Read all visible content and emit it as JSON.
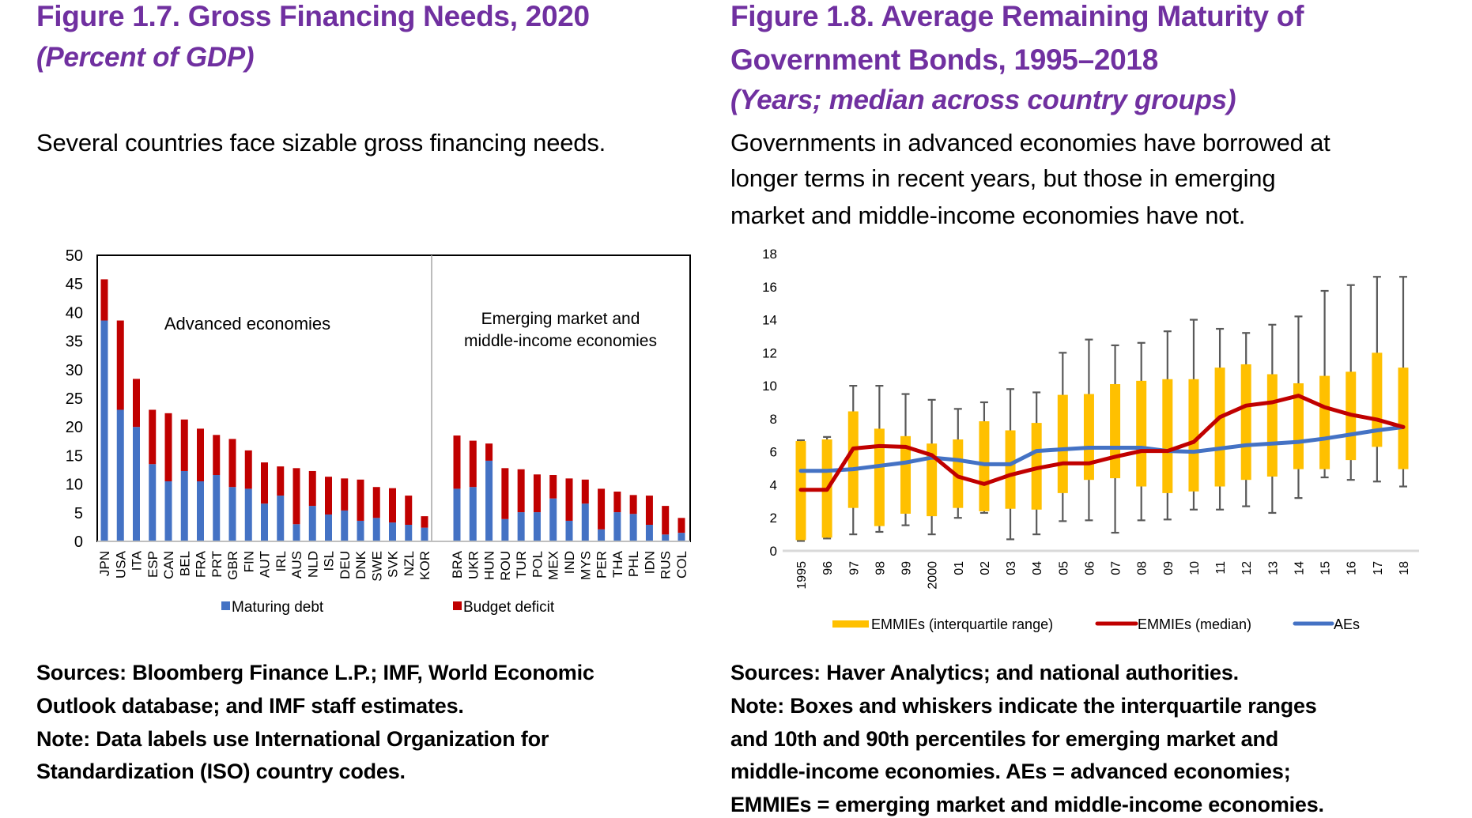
{
  "left_panel": {
    "title": "Figure 1.7. Gross Financing Needs, 2020",
    "subtitle": "(Percent of GDP)",
    "description": "Several countries face sizable gross financing needs.",
    "notes": [
      "Sources: Bloomberg Finance L.P.; IMF, World Economic",
      "Outlook database; and IMF staff estimates.",
      "Note: Data labels use International Organization for",
      "Standardization (ISO) country codes."
    ]
  },
  "right_panel": {
    "title_lines": [
      "Figure 1.8. Average Remaining Maturity of",
      "Government Bonds, 1995–2018"
    ],
    "subtitle": "(Years; median across country groups)",
    "description_lines": [
      "Governments in advanced economies have borrowed at",
      "longer terms in recent years, but those in emerging",
      "market and middle-income economies have not."
    ],
    "notes": [
      "Sources: Haver Analytics; and national authorities.",
      "Note: Boxes and whiskers indicate the interquartile ranges",
      "and 10th and 90th percentiles for emerging market and",
      "middle-income economies. AEs = advanced economies;",
      "EMMIEs = emerging market and middle-income economies."
    ]
  },
  "colors": {
    "title_purple": "#7030a0",
    "maturing_debt": "#4472c4",
    "budget_deficit": "#c00000",
    "iqr_box": "#ffc000",
    "median_line": "#c00000",
    "ae_line": "#4472c4",
    "whisker": "#595959"
  },
  "chart_data": [
    {
      "type": "bar",
      "stacked": true,
      "title": "Gross Financing Needs, 2020",
      "ylabel": "Percent of GDP",
      "ylim": [
        0,
        50
      ],
      "yticks": [
        0,
        5,
        10,
        15,
        20,
        25,
        30,
        35,
        40,
        45,
        50
      ],
      "groups": [
        {
          "label": "Advanced economies",
          "categories": [
            "JPN",
            "USA",
            "ITA",
            "ESP",
            "CAN",
            "BEL",
            "FRA",
            "PRT",
            "GBR",
            "FIN",
            "AUT",
            "IRL",
            "AUS",
            "NLD",
            "ISL",
            "DEU",
            "DNK",
            "SWE",
            "SVK",
            "NZL",
            "KOR"
          ]
        },
        {
          "label_lines": [
            "Emerging market and",
            "middle-income economies"
          ],
          "categories": [
            "BRA",
            "UKR",
            "HUN",
            "ROU",
            "TUR",
            "POL",
            "MEX",
            "IND",
            "MYS",
            "PER",
            "THA",
            "PHL",
            "IDN",
            "RUS",
            "COL"
          ]
        }
      ],
      "categories": [
        "JPN",
        "USA",
        "ITA",
        "ESP",
        "CAN",
        "BEL",
        "FRA",
        "PRT",
        "GBR",
        "FIN",
        "AUT",
        "IRL",
        "AUS",
        "NLD",
        "ISL",
        "DEU",
        "DNK",
        "SWE",
        "SVK",
        "NZL",
        "KOR",
        "BRA",
        "UKR",
        "HUN",
        "ROU",
        "TUR",
        "POL",
        "MEX",
        "IND",
        "MYS",
        "PER",
        "THA",
        "PHL",
        "IDN",
        "RUS",
        "COL"
      ],
      "series": [
        {
          "name": "Maturing debt",
          "values": [
            38.6,
            23.0,
            20.0,
            13.5,
            10.5,
            12.3,
            10.5,
            11.6,
            9.5,
            9.2,
            6.6,
            8.0,
            3.0,
            6.2,
            4.7,
            5.4,
            3.6,
            4.1,
            3.3,
            2.9,
            2.4,
            9.2,
            9.5,
            14.1,
            3.9,
            5.1,
            5.1,
            7.5,
            3.6,
            6.6,
            2.1,
            5.1,
            4.8,
            2.9,
            1.2,
            1.5
          ]
        },
        {
          "name": "Budget deficit",
          "values": [
            7.2,
            15.6,
            8.4,
            9.5,
            11.9,
            9.0,
            9.2,
            7.0,
            8.4,
            6.7,
            7.2,
            5.1,
            9.8,
            6.1,
            6.6,
            5.6,
            7.2,
            5.4,
            6.0,
            5.1,
            2.0,
            9.3,
            8.1,
            3.0,
            8.9,
            7.5,
            6.6,
            4.1,
            7.4,
            4.2,
            7.1,
            3.6,
            3.3,
            5.1,
            5.0,
            2.6
          ]
        }
      ],
      "totals": [
        45.8,
        38.6,
        28.4,
        23.0,
        22.4,
        21.3,
        19.7,
        18.6,
        17.9,
        15.9,
        13.8,
        13.1,
        12.8,
        12.3,
        11.3,
        11.0,
        10.8,
        9.5,
        9.3,
        8.0,
        4.4,
        18.5,
        17.6,
        17.1,
        12.8,
        12.6,
        11.7,
        11.6,
        11.0,
        10.8,
        9.2,
        8.7,
        8.1,
        8.0,
        6.2,
        4.1
      ],
      "legend": [
        "Maturing debt",
        "Budget deficit"
      ],
      "legend_position": "bottom",
      "grid": false
    },
    {
      "type": "boxplot+line",
      "title": "Average Remaining Maturity of Government Bonds, 1995–2018",
      "ylabel": "Years",
      "ylim": [
        0,
        18
      ],
      "yticks": [
        0,
        2,
        4,
        6,
        8,
        10,
        12,
        14,
        16,
        18
      ],
      "x_labels": [
        "1995",
        "96",
        "97",
        "98",
        "99",
        "2000",
        "01",
        "02",
        "03",
        "04",
        "05",
        "06",
        "07",
        "08",
        "09",
        "10",
        "11",
        "12",
        "13",
        "14",
        "15",
        "16",
        "17",
        "18"
      ],
      "series": [
        {
          "name": "EMMIEs (interquartile range)",
          "kind": "box",
          "q1": [
            0.65,
            0.8,
            2.6,
            1.5,
            2.25,
            2.1,
            2.6,
            2.4,
            2.55,
            2.5,
            3.5,
            4.3,
            4.4,
            3.9,
            3.5,
            3.6,
            3.9,
            4.3,
            4.5,
            4.95,
            4.95,
            5.5,
            6.3,
            4.95
          ],
          "q3": [
            6.65,
            6.75,
            8.45,
            7.4,
            6.95,
            6.5,
            6.75,
            7.85,
            7.3,
            7.75,
            9.45,
            9.5,
            10.1,
            10.3,
            10.4,
            10.4,
            11.1,
            11.3,
            10.7,
            10.15,
            10.6,
            10.85,
            12.0,
            11.1
          ],
          "p10": [
            0.6,
            0.75,
            1.0,
            1.15,
            1.55,
            1.0,
            2.0,
            2.3,
            0.7,
            1.0,
            1.8,
            1.85,
            1.1,
            1.85,
            1.9,
            2.5,
            2.5,
            2.7,
            2.3,
            3.2,
            4.45,
            4.3,
            4.2,
            3.9
          ],
          "p90": [
            6.7,
            6.9,
            10.0,
            10.0,
            9.5,
            9.15,
            8.6,
            9.0,
            9.8,
            9.6,
            12.0,
            12.8,
            12.45,
            12.6,
            13.3,
            14.0,
            13.45,
            13.2,
            13.7,
            14.2,
            15.75,
            16.1,
            16.6,
            16.6
          ]
        },
        {
          "name": "EMMIEs (median)",
          "kind": "line",
          "values": [
            3.7,
            3.7,
            6.2,
            6.35,
            6.3,
            5.8,
            4.5,
            4.05,
            4.6,
            5.0,
            5.3,
            5.3,
            5.7,
            6.05,
            6.05,
            6.6,
            8.1,
            8.8,
            9.0,
            9.4,
            8.7,
            8.25,
            7.95,
            7.5
          ]
        },
        {
          "name": "AEs",
          "kind": "line",
          "values": [
            4.85,
            4.85,
            4.95,
            5.15,
            5.35,
            5.65,
            5.5,
            5.25,
            5.25,
            6.05,
            6.15,
            6.25,
            6.25,
            6.25,
            6.05,
            6.0,
            6.2,
            6.4,
            6.5,
            6.6,
            6.8,
            7.05,
            7.3,
            7.5
          ]
        }
      ],
      "legend": [
        "EMMIEs (interquartile range)",
        "EMMIEs (median)",
        "AEs"
      ],
      "legend_position": "bottom",
      "grid": false
    }
  ]
}
